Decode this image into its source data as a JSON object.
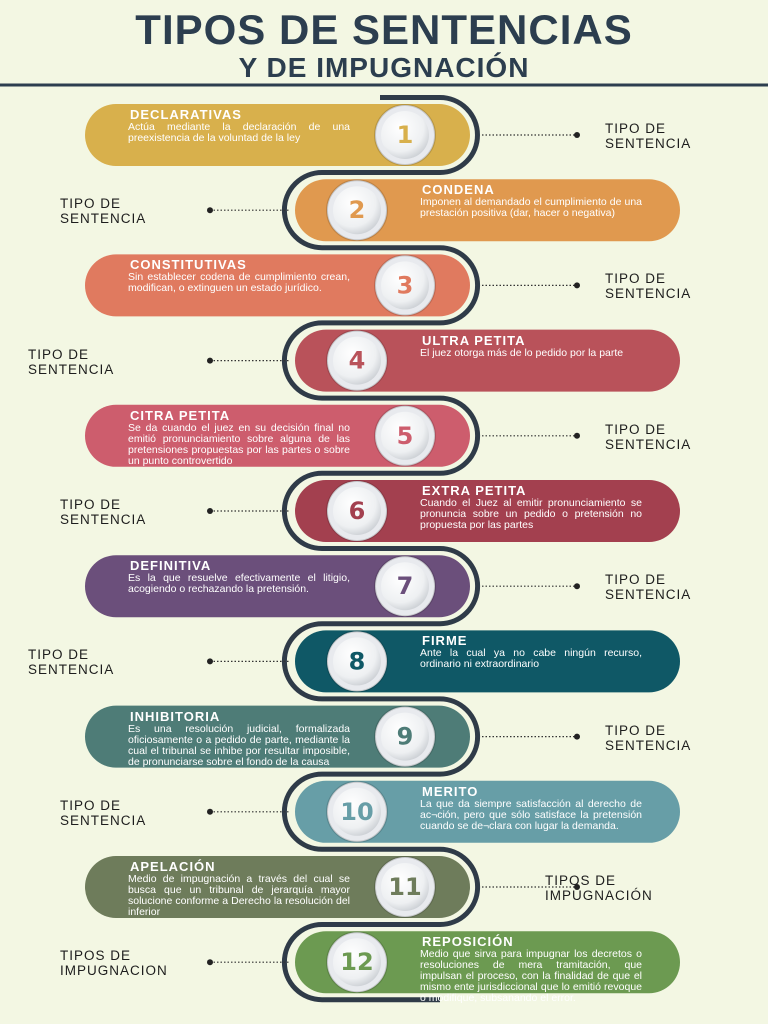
{
  "header": {
    "title": "TIPOS DE SENTENCIAS",
    "subtitle": "Y DE IMPUGNACIÓN"
  },
  "items": [
    {
      "number": "1",
      "title": "DECLARATIVAS",
      "text": "Actúa mediante la declaración de una preexistencia de la voluntad de la ley",
      "side_label": "TIPO DE SENTENCIA"
    },
    {
      "number": "2",
      "title": "CONDENA",
      "text": "Imponen al demandado el cumplimiento de una prestación positiva (dar, hacer o negativa)",
      "side_label": "TIPO DE SENTENCIA"
    },
    {
      "number": "3",
      "title": "CONSTITUTIVAS",
      "text": "Sin establecer codena de cumplimiento crean, modifican, o extinguen un estado jurídico.",
      "side_label": "TIPO DE SENTENCIA"
    },
    {
      "number": "4",
      "title": "ULTRA PETITA",
      "text": "El juez otorga más de lo pedido por la parte",
      "side_label": "TIPO DE SENTENCIA"
    },
    {
      "number": "5",
      "title": "CITRA PETITA",
      "text": "Se da cuando el juez en su decisión final no emitió pronunciamiento sobre alguna de las pretensiones propuestas por las partes o sobre un punto controvertido",
      "side_label": "TIPO DE SENTENCIA"
    },
    {
      "number": "6",
      "title": "EXTRA PETITA",
      "text": "Cuando el Juez al emitir pronunciamiento se pronuncia sobre un pedido o pretensión no propuesta por las partes",
      "side_label": "TIPO DE SENTENCIA"
    },
    {
      "number": "7",
      "title": "DEFINITIVA",
      "text": "Es la que resuelve efectivamente el litigio, acogiendo o rechazando la pretensión.",
      "side_label": "TIPO DE SENTENCIA"
    },
    {
      "number": "8",
      "title": "FIRME",
      "text": "Ante la cual ya no cabe ningún recurso, ordinario ni extraordinario",
      "side_label": "TIPO DE SENTENCIA"
    },
    {
      "number": "9",
      "title": "INHIBITORIA",
      "text": "Es una resolución judicial, formalizada oficiosamente o a pedido de parte, mediante la cual el tribunal se inhibe por resultar imposible, de pronunciarse sobre el fondo de la causa",
      "side_label": "TIPO DE SENTENCIA"
    },
    {
      "number": "10",
      "title": "MERITO",
      "text": "La que da siempre satisfacción al derecho de ac¬ción, pero que sólo satisface la pretensión cuando se de¬clara con lugar la demanda.",
      "side_label": "TIPO DE SENTENCIA"
    },
    {
      "number": "11",
      "title": "APELACIÓN",
      "text": "Medio de impugnación a través del cual se busca que un tribunal de jerarquía mayor solucione conforme a Derecho la resolución del inferior",
      "side_label": "TIPOS DE IMPUGNACIÓN"
    },
    {
      "number": "12",
      "title": "REPOSICIÓN",
      "text": "Medio que sirva para impugnar los decretos o resoluciones de mera tramitación, que impulsan el proceso, con la finalidad de que el mismo ente jurisdiccional que lo emitió revoque o modifique, subsanando el error.",
      "side_label": "TIPOS DE IMPUGNACION"
    }
  ]
}
